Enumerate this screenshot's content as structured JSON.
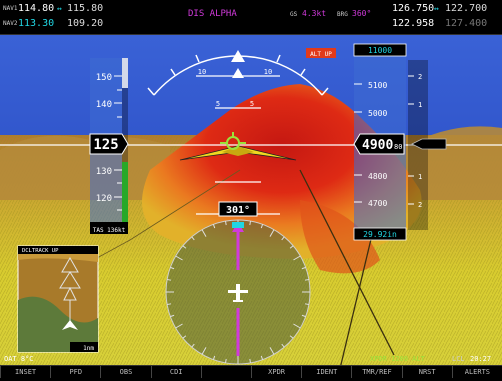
{
  "nav": {
    "nav1": {
      "label": "NAV1",
      "active": "114.80",
      "standby": "115.80"
    },
    "nav2": {
      "label": "NAV2",
      "active": "113.30",
      "standby": "109.20"
    },
    "flight_plan": "DIS ALPHA",
    "gs_label": "GS",
    "gs_value": "4.3kt",
    "brg_label": "BRG",
    "brg_value": "360°",
    "com1": {
      "active": "126.750",
      "standby": "122.700"
    },
    "com2": {
      "active": "122.958",
      "standby": "127.400"
    }
  },
  "airspeed": {
    "ticks": [
      "150",
      "140",
      "130",
      "120"
    ],
    "current": "125",
    "tas": "TAS 136kt"
  },
  "heading": {
    "value": "301°"
  },
  "altitude": {
    "selected": "11000",
    "ticks": [
      "5100",
      "5000",
      "4800",
      "4700"
    ],
    "current": "4900",
    "current_small": "80",
    "baro": "29.92in",
    "alert": "ALT UP",
    "vsi_ticks": [
      "2",
      "1",
      "1",
      "2"
    ]
  },
  "pitch": {
    "ticks": [
      "10",
      "10",
      "5",
      "5"
    ]
  },
  "inset_map": {
    "label": "DCLTRACK UP",
    "scale": "1nm"
  },
  "bottom": {
    "oat": "OAT 8°C",
    "xpdr": "XPDR 1200 ALT",
    "lcl": "LCL",
    "time": "20:27"
  },
  "softkeys": [
    "INSET",
    "PFD",
    "OBS",
    "CDI",
    "",
    "XPDR",
    "IDENT",
    "TMR/REF",
    "NRST",
    "ALERTS"
  ],
  "colors": {
    "sky": "#2e52c8",
    "terrain_red": "#d61e12",
    "terrain_yellow": "#dcd12a",
    "magenta": "#d13adb",
    "cyan": "#21d6e3",
    "amber": "#f0c030"
  }
}
